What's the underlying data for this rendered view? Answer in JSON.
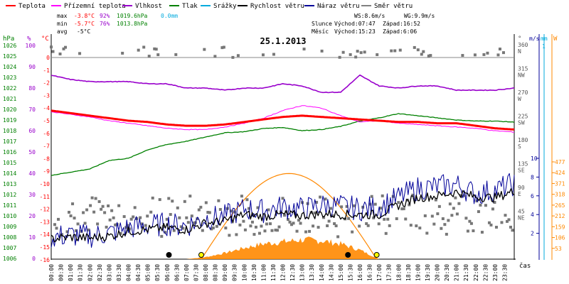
{
  "chart_data": {
    "type": "line",
    "title": "25.1.2013",
    "legend": {
      "items": [
        {
          "name": "Teplota",
          "color": "#ff0000"
        },
        {
          "name": "Přízemní teplota",
          "color": "#ff00ff"
        },
        {
          "name": "Vlhkost",
          "color": "#9900cc"
        },
        {
          "name": "Tlak",
          "color": "#008000"
        },
        {
          "name": "Srážky",
          "color": "#00aadd"
        },
        {
          "name": "Rychlost větru",
          "color": "#000000"
        },
        {
          "name": "Náraz větru",
          "color": "#000099"
        },
        {
          "name": "Směr větru",
          "color": "#808080"
        }
      ]
    },
    "stats": {
      "max": {
        "label": "max",
        "temp": "-3.8°C",
        "hum": "92%",
        "press": "1019.6hPa",
        "rain": "0.0mm"
      },
      "min": {
        "label": "min",
        "temp": "-5.7°C",
        "hum": "76%",
        "press": "1013.8hPa"
      },
      "avg": {
        "label": "avg",
        "temp": "-5°C"
      },
      "wind": {
        "ws": "WS:8.6m/s",
        "wg": "WG:9.9m/s"
      },
      "sun": {
        "label": "Slunce",
        "rise": "Východ:07:47",
        "set": "Západ:16:52"
      },
      "moon": {
        "label": "Měsíc",
        "rise": "Východ:15:23",
        "set": "Západ:6:06"
      }
    },
    "axes": {
      "hpa": {
        "label": "hPa",
        "ticks": [
          "1026",
          "1025",
          "1024",
          "1023",
          "1022",
          "1021",
          "1020",
          "1019",
          "1018",
          "1017",
          "1016",
          "1015",
          "1014",
          "1013",
          "1012",
          "1011",
          "1010",
          "1009",
          "1008",
          "1007",
          "1006"
        ]
      },
      "percent": {
        "label": "%",
        "ticks": [
          "100",
          "90",
          "80",
          "70",
          "60",
          "50",
          "40",
          "30",
          "20",
          "10",
          "0"
        ]
      },
      "celsius": {
        "label": "°C",
        "ticks": [
          "0",
          "-1",
          "-2",
          "-3",
          "-4",
          "-5",
          "-6",
          "-7",
          "-8",
          "-9",
          "-10",
          "-11",
          "-12",
          "-13",
          "-14",
          "-15",
          "-16"
        ]
      },
      "direction": {
        "label": "°",
        "ticks": [
          {
            "deg": "360",
            "dir": "N"
          },
          {
            "deg": "315",
            "dir": "NW"
          },
          {
            "deg": "270",
            "dir": "W"
          },
          {
            "deg": "225",
            "dir": "SW"
          },
          {
            "deg": "180",
            "dir": "S"
          },
          {
            "deg": "135",
            "dir": "SE"
          },
          {
            "deg": "90",
            "dir": "E"
          },
          {
            "deg": "45",
            "dir": "NE"
          }
        ]
      },
      "wind_speed": {
        "label": "m/s",
        "ticks": [
          "10",
          "8",
          "6",
          "4",
          "2"
        ]
      },
      "rain": {
        "label": "mm",
        "ticks": [
          "1"
        ]
      },
      "solar": {
        "label": "W",
        "ticks": [
          "477",
          "424",
          "371",
          "318",
          "265",
          "212",
          "159",
          "106",
          "53"
        ]
      },
      "time": {
        "label": "čas",
        "ticks": [
          "00:00",
          "00:30",
          "01:00",
          "01:30",
          "02:00",
          "02:30",
          "03:00",
          "03:30",
          "04:00",
          "04:30",
          "05:00",
          "05:30",
          "06:00",
          "06:30",
          "07:00",
          "07:30",
          "08:00",
          "08:30",
          "09:00",
          "09:30",
          "10:00",
          "10:30",
          "11:00",
          "11:30",
          "12:00",
          "12:30",
          "13:00",
          "13:30",
          "14:00",
          "14:30",
          "15:00",
          "15:30",
          "16:00",
          "16:30",
          "17:00",
          "17:30",
          "18:00",
          "18:30",
          "19:00",
          "19:30",
          "20:00",
          "20:30",
          "21:00",
          "21:30",
          "22:00",
          "22:30",
          "23:00",
          "23:30"
        ]
      }
    },
    "series_hourly": {
      "hours": [
        0,
        1,
        2,
        3,
        4,
        5,
        6,
        7,
        8,
        9,
        10,
        11,
        12,
        13,
        14,
        15,
        16,
        17,
        18,
        19,
        20,
        21,
        22,
        23,
        24
      ],
      "temperature": [
        -4.2,
        -4.4,
        -4.6,
        -4.8,
        -5.0,
        -5.1,
        -5.3,
        -5.4,
        -5.4,
        -5.3,
        -5.1,
        -4.9,
        -4.7,
        -4.6,
        -4.7,
        -4.8,
        -4.9,
        -5.0,
        -5.1,
        -5.1,
        -5.2,
        -5.2,
        -5.4,
        -5.6,
        -5.7
      ],
      "ground_temperature": [
        -4.3,
        -4.5,
        -4.7,
        -5.0,
        -5.2,
        -5.4,
        -5.6,
        -5.7,
        -5.7,
        -5.5,
        -5.2,
        -4.8,
        -4.2,
        -3.8,
        -4.0,
        -4.6,
        -5.1,
        -5.0,
        -5.2,
        -5.3,
        -5.4,
        -5.5,
        -5.6,
        -5.8,
        -5.9
      ],
      "humidity": [
        86,
        84,
        83,
        83,
        83,
        82,
        82,
        80,
        80,
        79,
        80,
        80,
        82,
        81,
        78,
        78,
        86,
        81,
        80,
        81,
        81,
        79,
        79,
        79,
        80
      ],
      "pressure": [
        1013.8,
        1014.1,
        1014.4,
        1015.2,
        1015.4,
        1016.2,
        1016.7,
        1017.0,
        1017.4,
        1017.8,
        1017.9,
        1018.2,
        1018.3,
        1018.0,
        1018.1,
        1018.4,
        1018.9,
        1019.2,
        1019.6,
        1019.4,
        1019.2,
        1019.0,
        1018.9,
        1018.9,
        1018.8
      ],
      "wind_speed": [
        1.4,
        1.6,
        1.5,
        1.7,
        2.2,
        2.4,
        2.6,
        2.4,
        3.1,
        3.3,
        4.0,
        3.8,
        4.0,
        3.9,
        4.1,
        4.0,
        4.0,
        4.0,
        5.0,
        5.8,
        6.0,
        6.4,
        5.9,
        5.8,
        6.5
      ],
      "wind_gust": [
        1.6,
        1.8,
        1.7,
        2.0,
        2.6,
        2.8,
        3.0,
        2.8,
        3.6,
        3.8,
        4.6,
        4.4,
        4.8,
        4.6,
        5.0,
        4.9,
        4.6,
        4.8,
        5.8,
        6.8,
        7.0,
        7.2,
        6.2,
        6.6,
        7.3
      ],
      "solar": [
        0,
        0,
        0,
        0,
        0,
        0,
        0,
        0,
        10,
        30,
        55,
        75,
        85,
        95,
        90,
        75,
        45,
        0,
        0,
        0,
        0,
        0,
        0,
        0,
        0
      ]
    },
    "max_solar_theoretical": 420,
    "sunrise_hour": 7.78,
    "sunset_hour": 16.87,
    "moonset_hour": 6.1,
    "moonrise_hour": 15.38
  }
}
